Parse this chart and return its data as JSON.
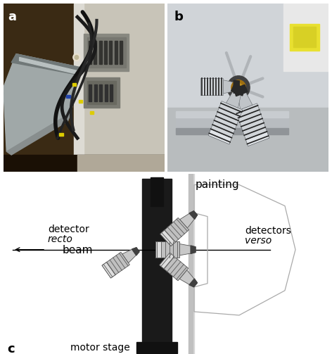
{
  "fig_width": 4.72,
  "fig_height": 5.03,
  "dpi": 100,
  "bg_color": "#ffffff",
  "panel_a_label": "a",
  "panel_b_label": "b",
  "panel_c_label": "c",
  "label_fontsize": 13,
  "label_fontweight": "bold",
  "beam_text": "beam",
  "beam_text_fontsize": 11,
  "painting_text": "painting",
  "painting_text_fontsize": 11,
  "recto_text1": "recto",
  "recto_text2": "detector",
  "recto_fontsize": 10,
  "verso_text1": "verso",
  "verso_text2": "detectors",
  "verso_fontsize": 10,
  "motor_stage_text": "motor stage",
  "motor_stage_fontsize": 10
}
